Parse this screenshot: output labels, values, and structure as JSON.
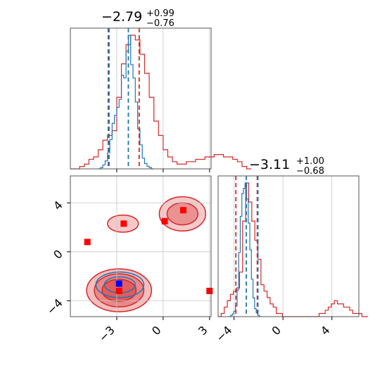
{
  "chart_data": {
    "type": "corner",
    "parameters": [
      {
        "title": "−2.79",
        "title_sup": "+0.99",
        "title_sub": "−0.76",
        "axis_range": [
          -6.0,
          3.1
        ],
        "ticks": [
          -3,
          0,
          3
        ],
        "tick_labels": [
          "−3",
          "0",
          "3"
        ]
      },
      {
        "title": "−3.11",
        "title_sup": "+1.00",
        "title_sub": "−0.68",
        "axis_range": [
          -5.3,
          6.2
        ],
        "ticks": [
          -4,
          0,
          4
        ],
        "tick_labels": [
          "−4",
          "0",
          "4"
        ]
      }
    ],
    "series": [
      {
        "color": "#1f77b4",
        "quantile_lines_p1": [
          -3.55,
          -2.25
        ],
        "quantile_lines_p2": [
          -3.0,
          -2.05
        ],
        "hist_p1": {
          "x_start": -4.2,
          "bin_width": 0.15,
          "counts": [
            0,
            1,
            3,
            6,
            12,
            22,
            34,
            40,
            46,
            52,
            70,
            68,
            88,
            100,
            78,
            68,
            50,
            30,
            18,
            8,
            4,
            2,
            1,
            0
          ]
        },
        "hist_p2": {
          "x_start": -4.4,
          "bin_width": 0.13,
          "counts": [
            0,
            1,
            2,
            4,
            8,
            20,
            48,
            75,
            92,
            96,
            100,
            88,
            70,
            50,
            28,
            14,
            6,
            3,
            1,
            0
          ]
        },
        "points_2d": [
          {
            "x": -2.85,
            "y": -2.6
          }
        ]
      },
      {
        "color": "#d62728",
        "quantile_lines_p1": [
          -3.5,
          -1.55
        ],
        "quantile_lines_p2": [
          -3.85,
          -2.1
        ],
        "hist_p1": {
          "x_start": -6.0,
          "bin_width": 0.3,
          "counts": [
            0,
            0,
            1,
            2,
            4,
            5,
            8,
            12,
            14,
            16,
            30,
            44,
            52,
            56,
            54,
            48,
            40,
            30,
            20,
            14,
            8,
            5,
            3,
            2,
            2,
            3,
            3,
            4,
            4,
            5,
            5,
            6,
            6,
            5,
            5,
            4,
            3,
            1,
            0
          ]
        },
        "hist_p2": {
          "x_start": -5.3,
          "bin_width": 0.25,
          "counts": [
            0,
            1,
            3,
            5,
            7,
            8,
            9,
            14,
            30,
            42,
            36,
            30,
            24,
            18,
            10,
            8,
            6,
            4,
            3,
            1,
            1,
            0,
            0,
            0,
            0,
            0,
            0,
            0,
            0,
            0,
            0,
            0,
            0,
            1,
            1,
            2,
            3,
            4,
            5,
            4,
            4,
            3,
            3,
            2,
            1,
            1,
            1,
            0,
            0
          ]
        },
        "points_2d": [
          {
            "x": 1.3,
            "y": 3.4
          },
          {
            "x": 0.1,
            "y": 2.5
          },
          {
            "x": -2.55,
            "y": 2.3
          },
          {
            "x": -4.9,
            "y": 0.8
          },
          {
            "x": -2.85,
            "y": -3.2
          },
          {
            "x": 3.0,
            "y": -3.2
          }
        ]
      }
    ],
    "grid": true,
    "legend": "none"
  }
}
